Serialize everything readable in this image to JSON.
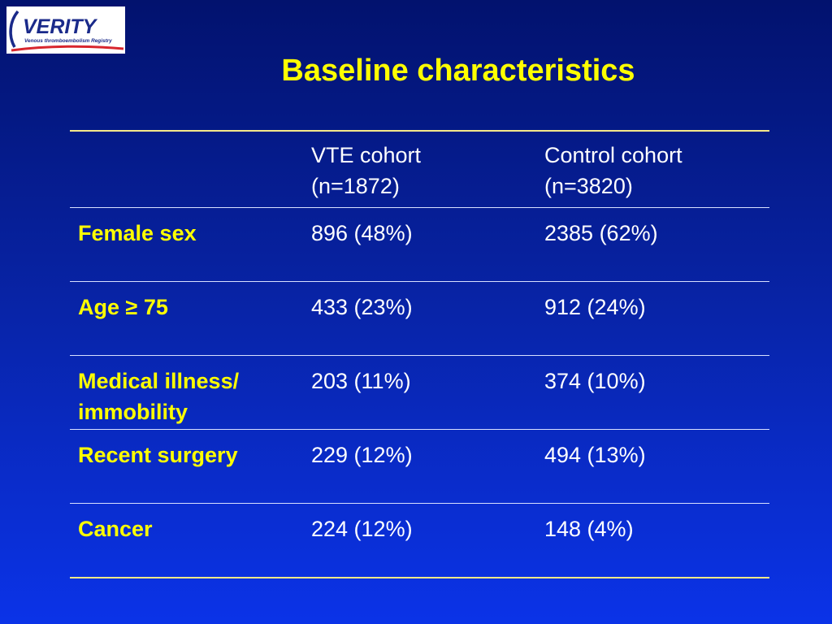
{
  "logo": {
    "name": "VERITY",
    "tagline": "Venous thromboembolism Registry",
    "colors": {
      "navy": "#1a2a8a",
      "red": "#d8262e"
    }
  },
  "title": "Baseline characteristics",
  "table": {
    "headers": [
      {
        "line1": "",
        "line2": ""
      },
      {
        "line1": "VTE cohort",
        "line2": "(n=1872)"
      },
      {
        "line1": "Control cohort",
        "line2": "(n=3820)"
      }
    ],
    "rows": [
      {
        "label_line1": "Female sex",
        "label_line2": "",
        "vte": "896 (48%)",
        "control": "2385 (62%)"
      },
      {
        "label_line1": "Age ≥ 75",
        "label_line2": "",
        "vte": "433 (23%)",
        "control": "912 (24%)"
      },
      {
        "label_line1": "Medical illness/",
        "label_line2": "immobility",
        "vte": "203 (11%)",
        "control": "374 (10%)"
      },
      {
        "label_line1": "Recent surgery",
        "label_line2": "",
        "vte": "229 (12%)",
        "control": "494 (13%)"
      },
      {
        "label_line1": "Cancer",
        "label_line2": "",
        "vte": "224 (12%)",
        "control": "148 (4%)"
      }
    ]
  },
  "colors": {
    "background_top": "#02126e",
    "background_bottom": "#0b33e8",
    "title": "#ffff00",
    "row_label": "#ffff00",
    "text": "#ffffff",
    "rule": "#f5e88a"
  }
}
